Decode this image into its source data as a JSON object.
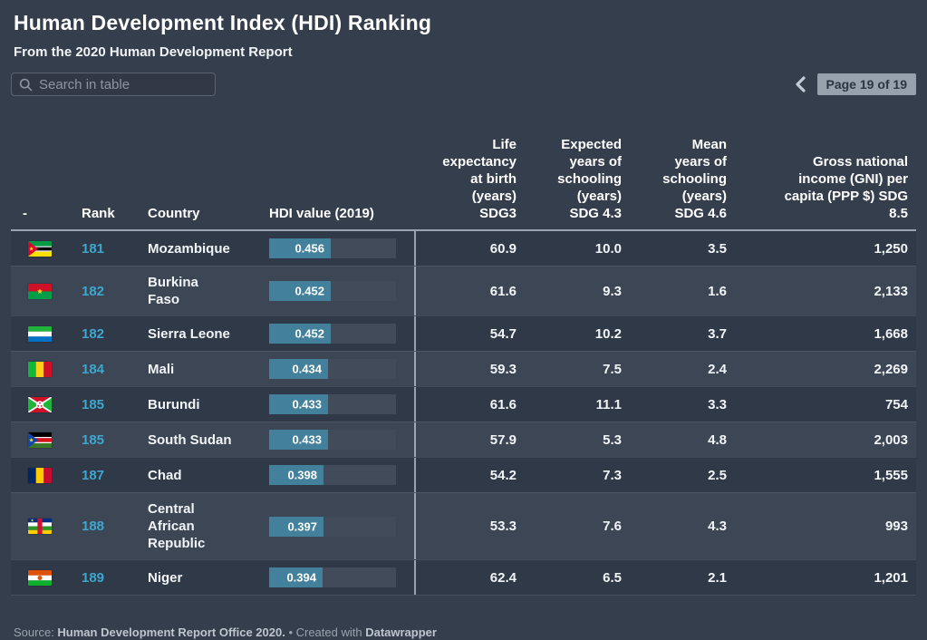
{
  "header": {
    "title": "Human Development Index (HDI) Ranking",
    "subtitle": "From the 2020 Human Development Report"
  },
  "controls": {
    "search_placeholder": "Search in table",
    "pagination": {
      "page_label": "Page 19 of 19"
    }
  },
  "table": {
    "columns": [
      {
        "id": "flag",
        "label": "-"
      },
      {
        "id": "rank",
        "label": "Rank"
      },
      {
        "id": "country",
        "label": "Country"
      },
      {
        "id": "hdi",
        "label": "HDI value (2019)"
      },
      {
        "id": "life",
        "label": "Life\nexpectancy\nat birth\n(years)\nSDG3"
      },
      {
        "id": "expected",
        "label": "Expected\nyears of\nschooling\n(years)\nSDG 4.3"
      },
      {
        "id": "mean",
        "label": "Mean\nyears of\nschooling\n(years)\nSDG 4.6"
      },
      {
        "id": "gni",
        "label": "Gross national\nincome (GNI) per\ncapita (PPP $) SDG\n8.5"
      }
    ],
    "rows": [
      {
        "flag": "mz",
        "flag_name": "mozambique-flag-icon",
        "rank": "181",
        "country": "Mozambique",
        "hdi": 0.456,
        "hdi_label": "0.456",
        "life": "60.9",
        "expected": "10.0",
        "mean": "3.5",
        "gni": "1,250"
      },
      {
        "flag": "bf",
        "flag_name": "burkina-faso-flag-icon",
        "rank": "182",
        "country": "Burkina\nFaso",
        "hdi": 0.452,
        "hdi_label": "0.452",
        "life": "61.6",
        "expected": "9.3",
        "mean": "1.6",
        "gni": "2,133"
      },
      {
        "flag": "sl",
        "flag_name": "sierra-leone-flag-icon",
        "rank": "182",
        "country": "Sierra Leone",
        "hdi": 0.452,
        "hdi_label": "0.452",
        "life": "54.7",
        "expected": "10.2",
        "mean": "3.7",
        "gni": "1,668"
      },
      {
        "flag": "ml",
        "flag_name": "mali-flag-icon",
        "rank": "184",
        "country": "Mali",
        "hdi": 0.434,
        "hdi_label": "0.434",
        "life": "59.3",
        "expected": "7.5",
        "mean": "2.4",
        "gni": "2,269"
      },
      {
        "flag": "bi",
        "flag_name": "burundi-flag-icon",
        "rank": "185",
        "country": "Burundi",
        "hdi": 0.433,
        "hdi_label": "0.433",
        "life": "61.6",
        "expected": "11.1",
        "mean": "3.3",
        "gni": "754"
      },
      {
        "flag": "ss",
        "flag_name": "south-sudan-flag-icon",
        "rank": "185",
        "country": "South Sudan",
        "hdi": 0.433,
        "hdi_label": "0.433",
        "life": "57.9",
        "expected": "5.3",
        "mean": "4.8",
        "gni": "2,003"
      },
      {
        "flag": "td",
        "flag_name": "chad-flag-icon",
        "rank": "187",
        "country": "Chad",
        "hdi": 0.398,
        "hdi_label": "0.398",
        "life": "54.2",
        "expected": "7.3",
        "mean": "2.5",
        "gni": "1,555"
      },
      {
        "flag": "cf",
        "flag_name": "central-african-republic-flag-icon",
        "rank": "188",
        "country": "Central\nAfrican\nRepublic",
        "hdi": 0.397,
        "hdi_label": "0.397",
        "life": "53.3",
        "expected": "7.6",
        "mean": "4.3",
        "gni": "993"
      },
      {
        "flag": "ne",
        "flag_name": "niger-flag-icon",
        "rank": "189",
        "country": "Niger",
        "hdi": 0.394,
        "hdi_label": "0.394",
        "life": "62.4",
        "expected": "6.5",
        "mean": "2.1",
        "gni": "1,201"
      }
    ]
  },
  "footer": {
    "segments": [
      {
        "text": "Source: ",
        "bold": false
      },
      {
        "text": "Human Development Report Office 2020.",
        "bold": true
      },
      {
        "text": " • Created with ",
        "bold": false
      },
      {
        "text": "Datawrapper",
        "bold": true
      }
    ]
  },
  "colors": {
    "background": "#353e4c",
    "row_dark": "#2f3947",
    "row_light": "#3c4654",
    "bar_fill": "#43809b",
    "bar_track": "#414b5a",
    "rank_accent": "#3da7cf",
    "badge_background": "#97a1ae",
    "badge_text": "#2c3643"
  }
}
